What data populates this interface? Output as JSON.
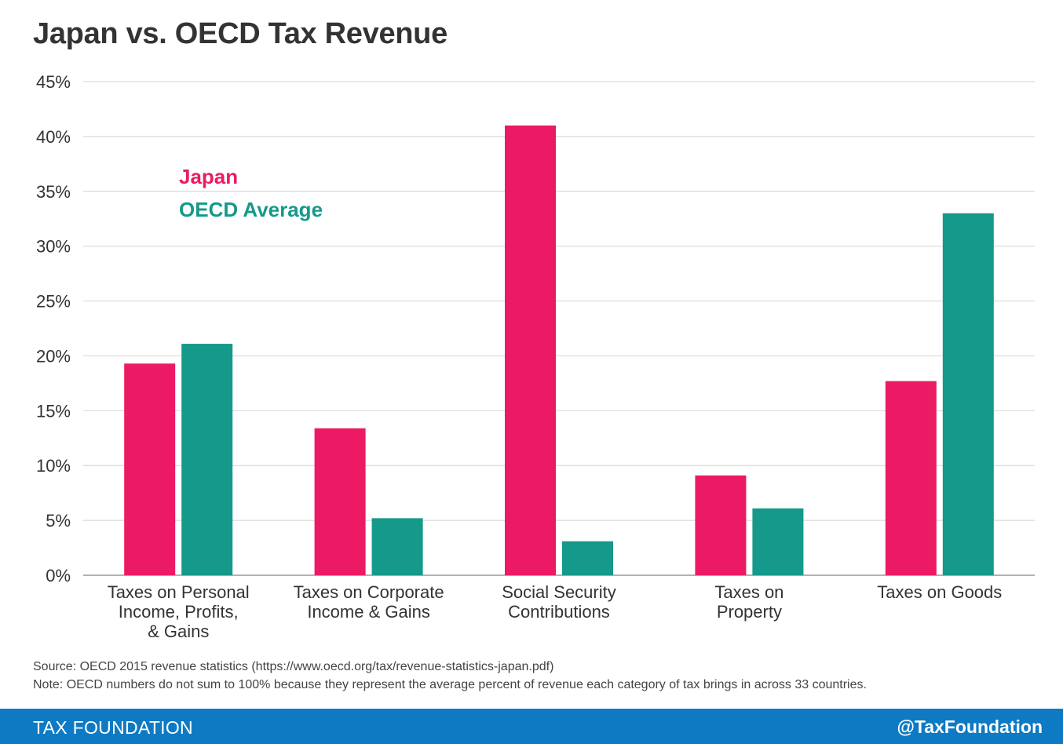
{
  "title": "Japan vs. OECD Tax Revenue",
  "colors": {
    "japan": "#ec1a64",
    "oecd": "#14998a",
    "grid": "#d9d9d9",
    "axis": "#999999",
    "text": "#333333"
  },
  "chart_data": {
    "type": "bar",
    "categories": [
      [
        "Taxes on Personal",
        "Income, Profits,",
        "& Gains"
      ],
      [
        "Taxes on Corporate",
        "Income & Gains"
      ],
      [
        "Social Security",
        "Contributions"
      ],
      [
        "Taxes on",
        "Property"
      ],
      [
        "Taxes on Goods"
      ]
    ],
    "series": [
      {
        "name": "Japan",
        "values": [
          19.3,
          13.4,
          41.0,
          9.1,
          17.7
        ]
      },
      {
        "name": "OECD Average",
        "values": [
          21.1,
          5.2,
          3.1,
          6.1,
          33.0
        ]
      }
    ],
    "yticks": [
      "0%",
      "5%",
      "10%",
      "15%",
      "20%",
      "25%",
      "30%",
      "35%",
      "40%",
      "45%"
    ],
    "ylim": [
      0,
      45
    ],
    "legend_placement": "top-left inside plot",
    "grid": true
  },
  "notes": {
    "source": "Source: OECD 2015 revenue statistics (https://www.oecd.org/tax/revenue-statistics-japan.pdf)",
    "note": "Note: OECD numbers do not sum to 100% because they represent the average percent of revenue each category of tax brings in across 33 countries."
  },
  "footer": {
    "brand": "TAX FOUNDATION",
    "handle": "@TaxFoundation"
  }
}
